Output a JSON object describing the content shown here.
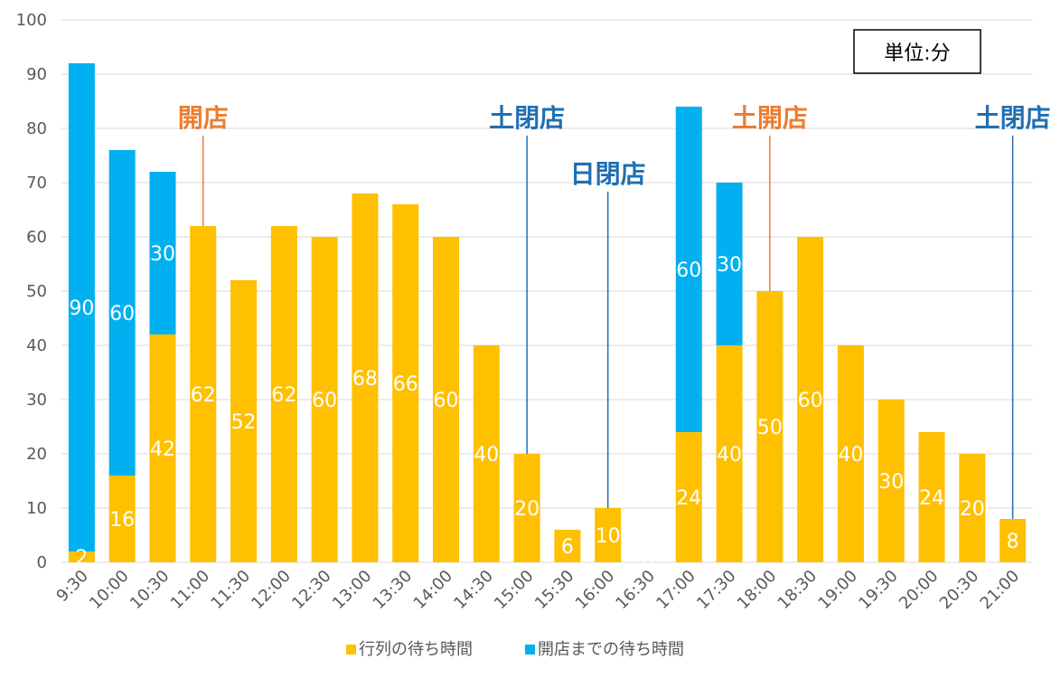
{
  "chart_data": {
    "type": "bar",
    "stacked": true,
    "categories": [
      "9:30",
      "10:00",
      "10:30",
      "11:00",
      "11:30",
      "12:00",
      "12:30",
      "13:00",
      "13:30",
      "14:00",
      "14:30",
      "15:00",
      "15:30",
      "16:00",
      "16:30",
      "17:00",
      "17:30",
      "18:00",
      "18:30",
      "19:00",
      "19:30",
      "20:00",
      "20:30",
      "21:00"
    ],
    "series": [
      {
        "name": "行列の待ち時間",
        "color": "#FFC000",
        "values": [
          2,
          16,
          42,
          62,
          52,
          62,
          60,
          68,
          66,
          60,
          40,
          20,
          6,
          10,
          0,
          24,
          40,
          50,
          60,
          40,
          30,
          24,
          20,
          8
        ]
      },
      {
        "name": "開店までの待ち時間",
        "color": "#00B0F0",
        "values": [
          90,
          60,
          30,
          0,
          0,
          0,
          0,
          0,
          0,
          0,
          0,
          0,
          0,
          0,
          0,
          60,
          30,
          0,
          0,
          0,
          0,
          0,
          0,
          0
        ]
      }
    ],
    "ylim": [
      0,
      100
    ],
    "yticks": [
      0,
      10,
      20,
      30,
      40,
      50,
      60,
      70,
      80,
      90,
      100
    ],
    "grid": true,
    "legend_position": "bottom",
    "unit_label": "単位:分",
    "annotations": [
      {
        "text": "開店",
        "category": "11:00",
        "color": "#ED7D31"
      },
      {
        "text": "土閉店",
        "category": "15:00",
        "color": "#1F6FB2"
      },
      {
        "text": "日閉店",
        "category": "16:00",
        "color": "#1F6FB2"
      },
      {
        "text": "土開店",
        "category": "18:00",
        "color": "#ED7D31"
      },
      {
        "text": "土閉店",
        "category": "21:00",
        "color": "#1F6FB2"
      }
    ]
  }
}
